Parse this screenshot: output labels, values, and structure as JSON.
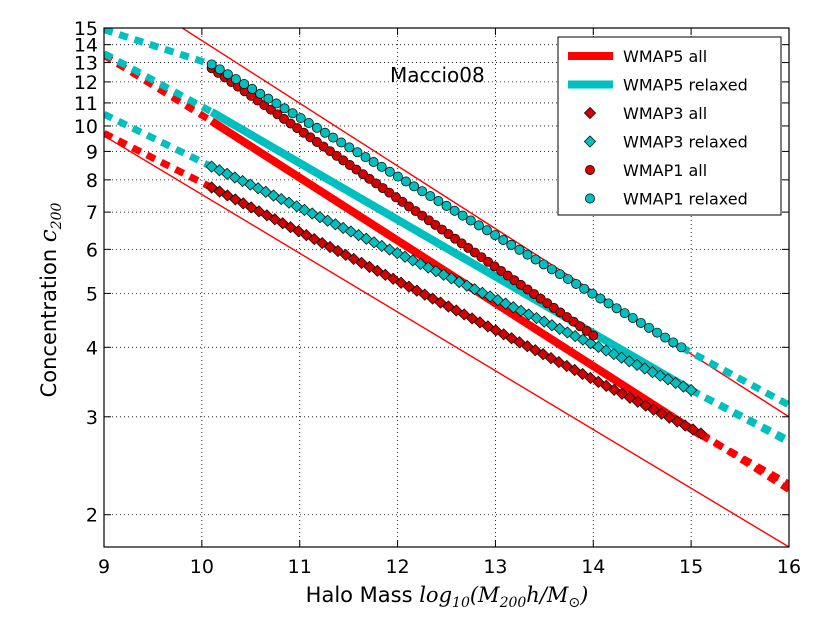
{
  "chart_data": {
    "type": "line",
    "title": "",
    "annotation": "Maccio08",
    "xlabel": {
      "prefix": "Halo Mass ",
      "math": "log",
      "sub": "10",
      "expr": "(M",
      "expr_sub": "200",
      "expr_mid": "h/M",
      "expr_sub2": "⊙",
      "expr_end": ")"
    },
    "ylabel": {
      "prefix": "Concentration ",
      "math": "c",
      "sub": "200"
    },
    "xlim": [
      9,
      16
    ],
    "ylim": [
      1.75,
      15
    ],
    "yscale": "log",
    "xticks": [
      9,
      10,
      11,
      12,
      13,
      14,
      15,
      16
    ],
    "xtick_labels": [
      "9",
      "10",
      "11",
      "12",
      "13",
      "14",
      "15",
      "16"
    ],
    "yticks": [
      2,
      3,
      4,
      5,
      6,
      7,
      8,
      9,
      10,
      11,
      12,
      13,
      14,
      15
    ],
    "ytick_labels": [
      "2",
      "3",
      "4",
      "5",
      "6",
      "7",
      "8",
      "9",
      "10",
      "11",
      "12",
      "13",
      "14",
      "15"
    ],
    "grid": true,
    "legend_position": "top-right",
    "colors": {
      "red": "#ff0000",
      "cyan": "#00bfbf",
      "red_marker": "#d40000"
    },
    "series": [
      {
        "name": "WMAP5 all",
        "style": "thick-line",
        "color": "red",
        "x": [
          10.1,
          15.1
        ],
        "y": [
          10.2,
          2.78
        ],
        "ext_x": [
          [
            9,
            10.1
          ],
          [
            15.1,
            16
          ]
        ],
        "ext_y": [
          [
            13.4,
            10.2
          ],
          [
            2.78,
            2.27
          ]
        ]
      },
      {
        "name": "WMAP5 relaxed",
        "style": "thick-line",
        "color": "cyan",
        "x": [
          10.1,
          15.0
        ],
        "y": [
          10.6,
          3.35
        ],
        "ext_x": [
          [
            9,
            10.1
          ],
          [
            15.0,
            16
          ]
        ],
        "ext_y": [
          [
            13.5,
            10.6
          ],
          [
            3.35,
            2.7
          ]
        ]
      },
      {
        "name": "WMAP3 all",
        "style": "diamond",
        "color": "red_marker",
        "x": [
          10.1,
          15.1
        ],
        "y": [
          7.75,
          2.8
        ],
        "ext_x": [
          [
            9,
            10.1
          ],
          [
            15.1,
            16
          ]
        ],
        "ext_y": [
          [
            9.7,
            7.75
          ],
          [
            2.8,
            2.22
          ]
        ]
      },
      {
        "name": "WMAP3 relaxed",
        "style": "diamond",
        "color": "cyan",
        "x": [
          10.1,
          15.0
        ],
        "y": [
          8.45,
          3.35
        ],
        "ext_x": [
          [
            9,
            10.1
          ],
          [
            15.0,
            16
          ]
        ],
        "ext_y": [
          [
            10.5,
            8.45
          ],
          [
            3.35,
            2.72
          ]
        ]
      },
      {
        "name": "WMAP1 all",
        "style": "circle",
        "color": "red_marker",
        "x": [
          10.1,
          14.0
        ],
        "y": [
          12.7,
          4.2
        ],
        "ext_x": [],
        "ext_y": []
      },
      {
        "name": "WMAP1 relaxed",
        "style": "circle",
        "color": "cyan",
        "x": [
          10.1,
          14.9
        ],
        "y": [
          12.9,
          4.0
        ],
        "ext_x": [
          [
            9,
            10.1
          ],
          [
            14.9,
            16
          ]
        ],
        "ext_y": [
          [
            14.9,
            12.9
          ],
          [
            4.0,
            3.15
          ]
        ]
      }
    ],
    "thin_lines": [
      {
        "color": "red",
        "x": [
          9,
          16
        ],
        "y": [
          9.6,
          1.75
        ]
      },
      {
        "color": "red",
        "x": [
          9.8,
          16
        ],
        "y": [
          15,
          3.0
        ]
      }
    ]
  }
}
